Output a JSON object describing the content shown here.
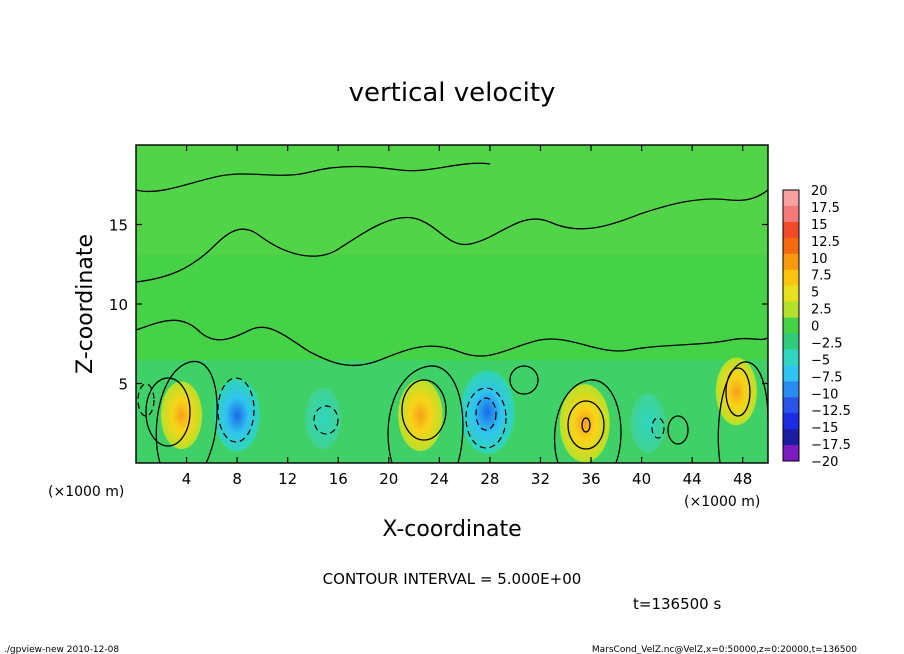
{
  "chart_data": {
    "type": "heatmap",
    "title": "vertical velocity",
    "xlabel": "X-coordinate",
    "ylabel": "Z-coordinate",
    "x_unit": "(×1000 m)",
    "x_unit_right": "(×1000 m)",
    "x_ticks": [
      4,
      8,
      12,
      16,
      20,
      24,
      28,
      32,
      36,
      40,
      44,
      48
    ],
    "y_ticks": [
      5,
      10,
      15
    ],
    "xlim": [
      0,
      50
    ],
    "ylim": [
      0,
      20
    ],
    "grid": false,
    "colorbar": {
      "labels": [
        "20",
        "17.5",
        "15",
        "12.5",
        "10",
        "7.5",
        "5",
        "2.5",
        "0",
        "−2.5",
        "−5",
        "−7.5",
        "−10",
        "−12.5",
        "−15",
        "−17.5",
        "−20"
      ],
      "colors": [
        "#f9a0a0",
        "#f47a7a",
        "#f04a2a",
        "#f46a10",
        "#f89a10",
        "#f8c410",
        "#e6e020",
        "#b4e02a",
        "#46d246",
        "#2ecc7a",
        "#30d6c0",
        "#30c4f0",
        "#2a8cf0",
        "#2a54e8",
        "#1c2ce0",
        "#1c1ca0",
        "#7a1cc0"
      ]
    },
    "cells": [
      {
        "x": 3.6,
        "z": 3.0,
        "w": 6.0
      },
      {
        "x": 8.0,
        "z": 3.0,
        "w": -8.0
      },
      {
        "x": 14.8,
        "z": 2.8,
        "w": -3.5
      },
      {
        "x": 22.5,
        "z": 3.0,
        "w": 7.5
      },
      {
        "x": 27.8,
        "z": 3.2,
        "w": -12.0
      },
      {
        "x": 35.5,
        "z": 2.5,
        "w": 10.0
      },
      {
        "x": 40.5,
        "z": 2.5,
        "w": -3.0
      },
      {
        "x": 47.5,
        "z": 4.5,
        "w": 6.0
      }
    ],
    "contour_interval_text": "CONTOUR INTERVAL = 5.000E+00",
    "time_text": "t=136500 s"
  },
  "footer": {
    "left": "./gpview-new  2010-12-08",
    "right": "MarsCond_VelZ.nc@VelZ,x=0:50000,z=0:20000,t=136500"
  }
}
